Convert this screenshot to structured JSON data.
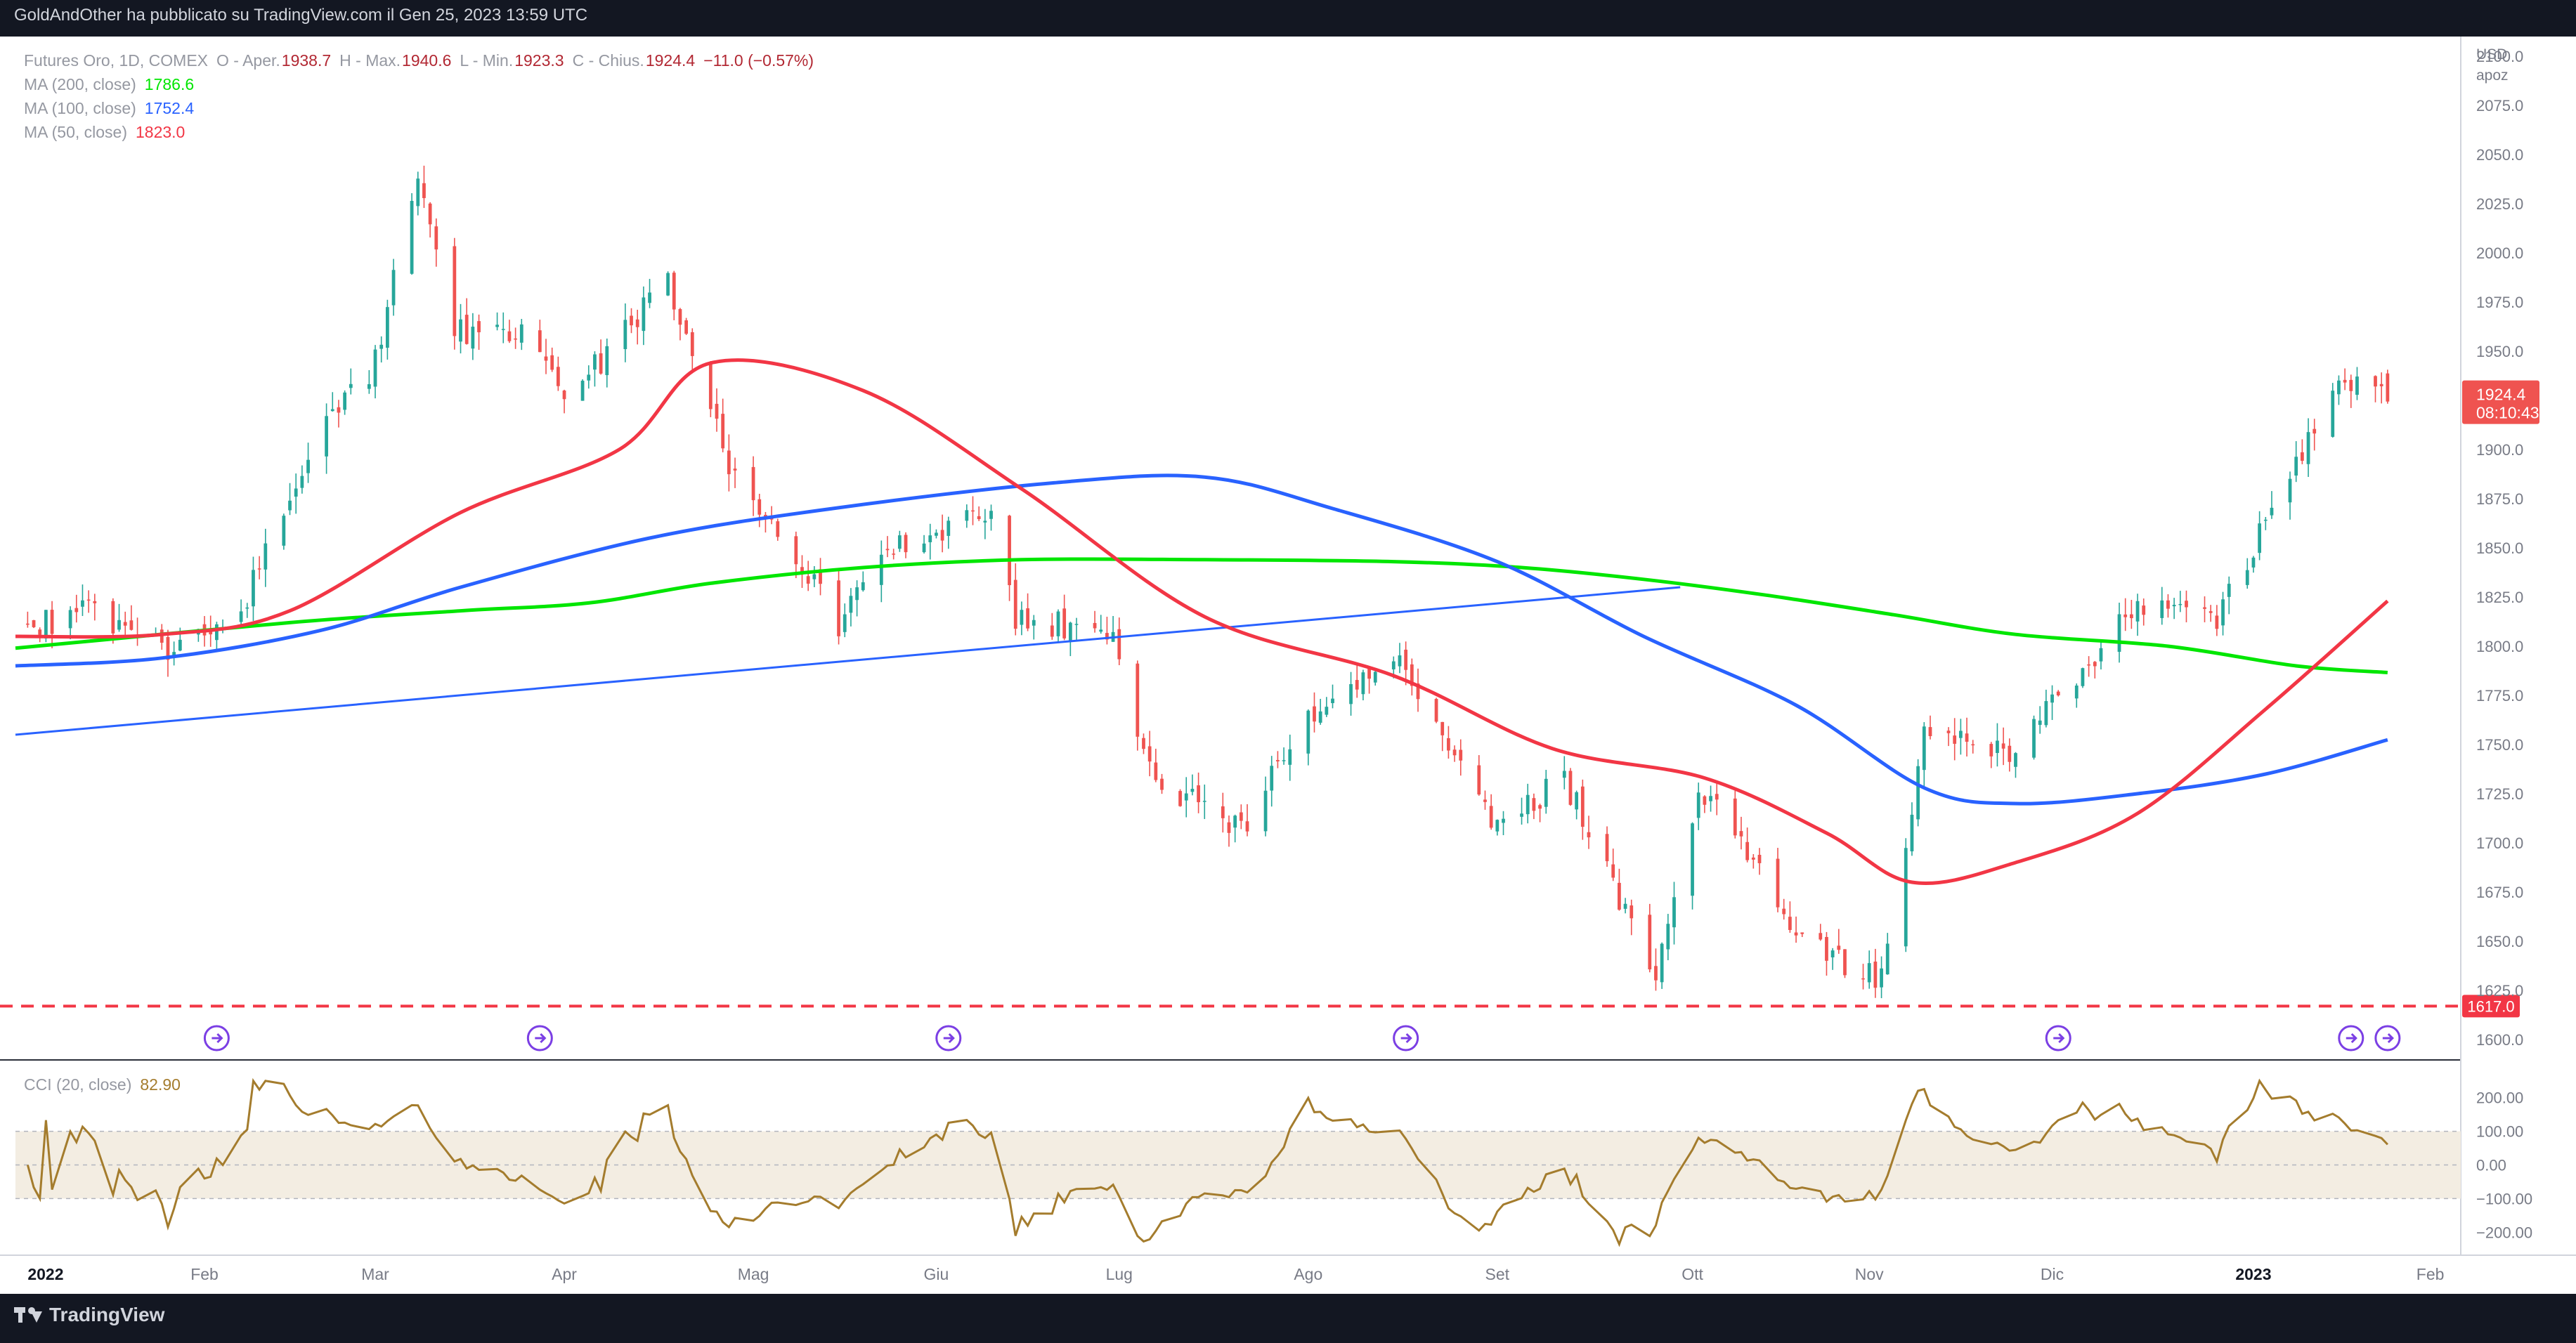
{
  "header": {
    "text": "GoldAndOther ha pubblicato su TradingView.com il Gen 25, 2023 13:59 UTC"
  },
  "footer": {
    "brand": "TradingView"
  },
  "legend": {
    "title": "Futures Oro, 1D, COMEX",
    "ohlc": [
      {
        "label": "O - Aper.",
        "value": "1938.7"
      },
      {
        "label": "H - Max.",
        "value": "1940.6"
      },
      {
        "label": "L - Min.",
        "value": "1923.3"
      },
      {
        "label": "C - Chius.",
        "value": "1924.4"
      }
    ],
    "change": "−11.0 (−0.57%)",
    "mas": [
      {
        "label": "MA (200, close)",
        "value": "1786.6",
        "color": "#00e600"
      },
      {
        "label": "MA (100, close)",
        "value": "1752.4",
        "color": "#2962ff"
      },
      {
        "label": "MA (50, close)",
        "value": "1823.0",
        "color": "#f23645"
      }
    ]
  },
  "price_axis": {
    "currency": "USD",
    "scale_mode": "apoz",
    "ticks": [
      "2100.0",
      "2075.0",
      "2050.0",
      "2025.0",
      "2000.0",
      "1975.0",
      "1950.0",
      "1925.0",
      "1900.0",
      "1875.0",
      "1850.0",
      "1825.0",
      "1800.0",
      "1775.0",
      "1750.0",
      "1725.0",
      "1700.0",
      "1675.0",
      "1650.0",
      "1625.0",
      "1600.0"
    ],
    "last_price_label": "1924.4",
    "countdown_label": "08:10:43",
    "hline_label": "1617.0"
  },
  "time_axis": {
    "ticks": [
      {
        "label": "2022",
        "date": "2022-01-03",
        "bold": true
      },
      {
        "label": "Feb",
        "date": "2022-02-01"
      },
      {
        "label": "Mar",
        "date": "2022-03-01"
      },
      {
        "label": "Apr",
        "date": "2022-04-01"
      },
      {
        "label": "Mag",
        "date": "2022-05-02"
      },
      {
        "label": "Giu",
        "date": "2022-06-01"
      },
      {
        "label": "Lug",
        "date": "2022-07-01"
      },
      {
        "label": "Ago",
        "date": "2022-08-01"
      },
      {
        "label": "Set",
        "date": "2022-09-01"
      },
      {
        "label": "Ott",
        "date": "2022-10-03"
      },
      {
        "label": "Nov",
        "date": "2022-11-01"
      },
      {
        "label": "Dic",
        "date": "2022-12-01"
      },
      {
        "label": "2023",
        "date": "2023-01-03",
        "bold": true
      },
      {
        "label": "Feb",
        "date": "2023-02-01"
      }
    ]
  },
  "cci": {
    "label": "CCI (20, close)",
    "value": "82.90",
    "ticks": [
      "200.00",
      "100.00",
      "0.00",
      "−100.00",
      "−200.00"
    ],
    "band_upper": 100,
    "band_lower": -100,
    "color": "#a47c2d"
  },
  "colors": {
    "background": "#131722",
    "pane": "#ffffff",
    "up": "#26a69a",
    "down": "#ef5350",
    "ma200": "#00e600",
    "ma100": "#2962ff",
    "ma50": "#f23645",
    "hline": "#f23645",
    "trendline": "#2962ff",
    "event_icon": "#7b3fe4"
  },
  "chart_data": {
    "type": "candlestick",
    "title": "Futures Oro, 1D, COMEX",
    "x_range": [
      "2022-01-01",
      "2023-02-06"
    ],
    "ylim": [
      1590,
      2110
    ],
    "y_scale": "linear",
    "grid": false,
    "legend_position": "top-left",
    "anchors": [
      {
        "date": "2022-01-03",
        "close": 1810
      },
      {
        "date": "2022-01-14",
        "close": 1818
      },
      {
        "date": "2022-01-27",
        "close": 1795
      },
      {
        "date": "2022-02-08",
        "close": 1826
      },
      {
        "date": "2022-02-18",
        "close": 1898
      },
      {
        "date": "2022-03-01",
        "close": 1944
      },
      {
        "date": "2022-03-08",
        "close": 2044
      },
      {
        "date": "2022-03-14",
        "close": 1960
      },
      {
        "date": "2022-03-25",
        "close": 1958
      },
      {
        "date": "2022-04-01",
        "close": 1924
      },
      {
        "date": "2022-04-18",
        "close": 1985
      },
      {
        "date": "2022-04-28",
        "close": 1890
      },
      {
        "date": "2022-05-10",
        "close": 1840
      },
      {
        "date": "2022-05-16",
        "close": 1812
      },
      {
        "date": "2022-05-24",
        "close": 1850
      },
      {
        "date": "2022-06-10",
        "close": 1870
      },
      {
        "date": "2022-06-14",
        "close": 1815
      },
      {
        "date": "2022-06-30",
        "close": 1806
      },
      {
        "date": "2022-07-06",
        "close": 1735
      },
      {
        "date": "2022-07-21",
        "close": 1706
      },
      {
        "date": "2022-08-01",
        "close": 1767
      },
      {
        "date": "2022-08-16",
        "close": 1790
      },
      {
        "date": "2022-09-01",
        "close": 1708
      },
      {
        "date": "2022-09-12",
        "close": 1733
      },
      {
        "date": "2022-09-27",
        "close": 1630
      },
      {
        "date": "2022-10-04",
        "close": 1730
      },
      {
        "date": "2022-10-21",
        "close": 1650
      },
      {
        "date": "2022-11-03",
        "close": 1630
      },
      {
        "date": "2022-11-10",
        "close": 1755
      },
      {
        "date": "2022-11-23",
        "close": 1745
      },
      {
        "date": "2022-12-05",
        "close": 1781
      },
      {
        "date": "2022-12-13",
        "close": 1818
      },
      {
        "date": "2022-12-28",
        "close": 1815
      },
      {
        "date": "2023-01-06",
        "close": 1870
      },
      {
        "date": "2023-01-16",
        "close": 1928
      },
      {
        "date": "2023-01-24",
        "close": 1935
      },
      {
        "date": "2023-01-25",
        "close": 1924.4
      }
    ],
    "last_bar": {
      "date": "2023-01-25",
      "open": 1938.7,
      "high": 1940.6,
      "low": 1923.3,
      "close": 1924.4
    },
    "series": [
      {
        "name": "MA (200, close)",
        "points": [
          [
            "2022-01-01",
            1799
          ],
          [
            "2022-02-15",
            1812
          ],
          [
            "2022-03-15",
            1818
          ],
          [
            "2022-04-05",
            1822
          ],
          [
            "2022-04-25",
            1832
          ],
          [
            "2022-05-20",
            1840
          ],
          [
            "2022-06-15",
            1844
          ],
          [
            "2022-07-15",
            1844
          ],
          [
            "2022-08-15",
            1843
          ],
          [
            "2022-09-05",
            1840
          ],
          [
            "2022-09-25",
            1834
          ],
          [
            "2022-10-15",
            1826
          ],
          [
            "2022-11-05",
            1816
          ],
          [
            "2022-11-25",
            1806
          ],
          [
            "2022-12-20",
            1800
          ],
          [
            "2023-01-10",
            1790
          ],
          [
            "2023-01-25",
            1786.6
          ]
        ]
      },
      {
        "name": "MA (100, close)",
        "points": [
          [
            "2022-01-01",
            1790
          ],
          [
            "2022-01-25",
            1794
          ],
          [
            "2022-02-20",
            1808
          ],
          [
            "2022-03-15",
            1830
          ],
          [
            "2022-04-15",
            1855
          ],
          [
            "2022-05-15",
            1870
          ],
          [
            "2022-06-20",
            1883
          ],
          [
            "2022-07-15",
            1886
          ],
          [
            "2022-08-05",
            1870
          ],
          [
            "2022-09-01",
            1843
          ],
          [
            "2022-09-25",
            1805
          ],
          [
            "2022-10-20",
            1770
          ],
          [
            "2022-11-10",
            1728
          ],
          [
            "2022-11-25",
            1720
          ],
          [
            "2022-12-15",
            1725
          ],
          [
            "2023-01-05",
            1735
          ],
          [
            "2023-01-25",
            1752.4
          ]
        ]
      },
      {
        "name": "MA (50, close)",
        "points": [
          [
            "2022-01-01",
            1805
          ],
          [
            "2022-01-25",
            1806
          ],
          [
            "2022-02-15",
            1818
          ],
          [
            "2022-03-15",
            1868
          ],
          [
            "2022-04-10",
            1900
          ],
          [
            "2022-04-25",
            1944
          ],
          [
            "2022-05-20",
            1930
          ],
          [
            "2022-06-15",
            1880
          ],
          [
            "2022-07-15",
            1815
          ],
          [
            "2022-08-15",
            1785
          ],
          [
            "2022-09-10",
            1748
          ],
          [
            "2022-10-05",
            1733
          ],
          [
            "2022-10-25",
            1705
          ],
          [
            "2022-11-08",
            1680
          ],
          [
            "2022-11-25",
            1690
          ],
          [
            "2022-12-15",
            1715
          ],
          [
            "2023-01-05",
            1768
          ],
          [
            "2023-01-25",
            1823.0
          ]
        ]
      }
    ],
    "horizontal_line": {
      "value": 1617.0,
      "style": "dashed"
    },
    "trendline": {
      "start": {
        "date": "2022-01-01",
        "value": 1755
      },
      "end": {
        "date": "2022-10-01",
        "value": 1830
      }
    },
    "event_markers": [
      "2022-02-03",
      "2022-03-28",
      "2022-06-03",
      "2022-08-17",
      "2022-12-02",
      "2023-01-19",
      "2023-01-25"
    ]
  }
}
